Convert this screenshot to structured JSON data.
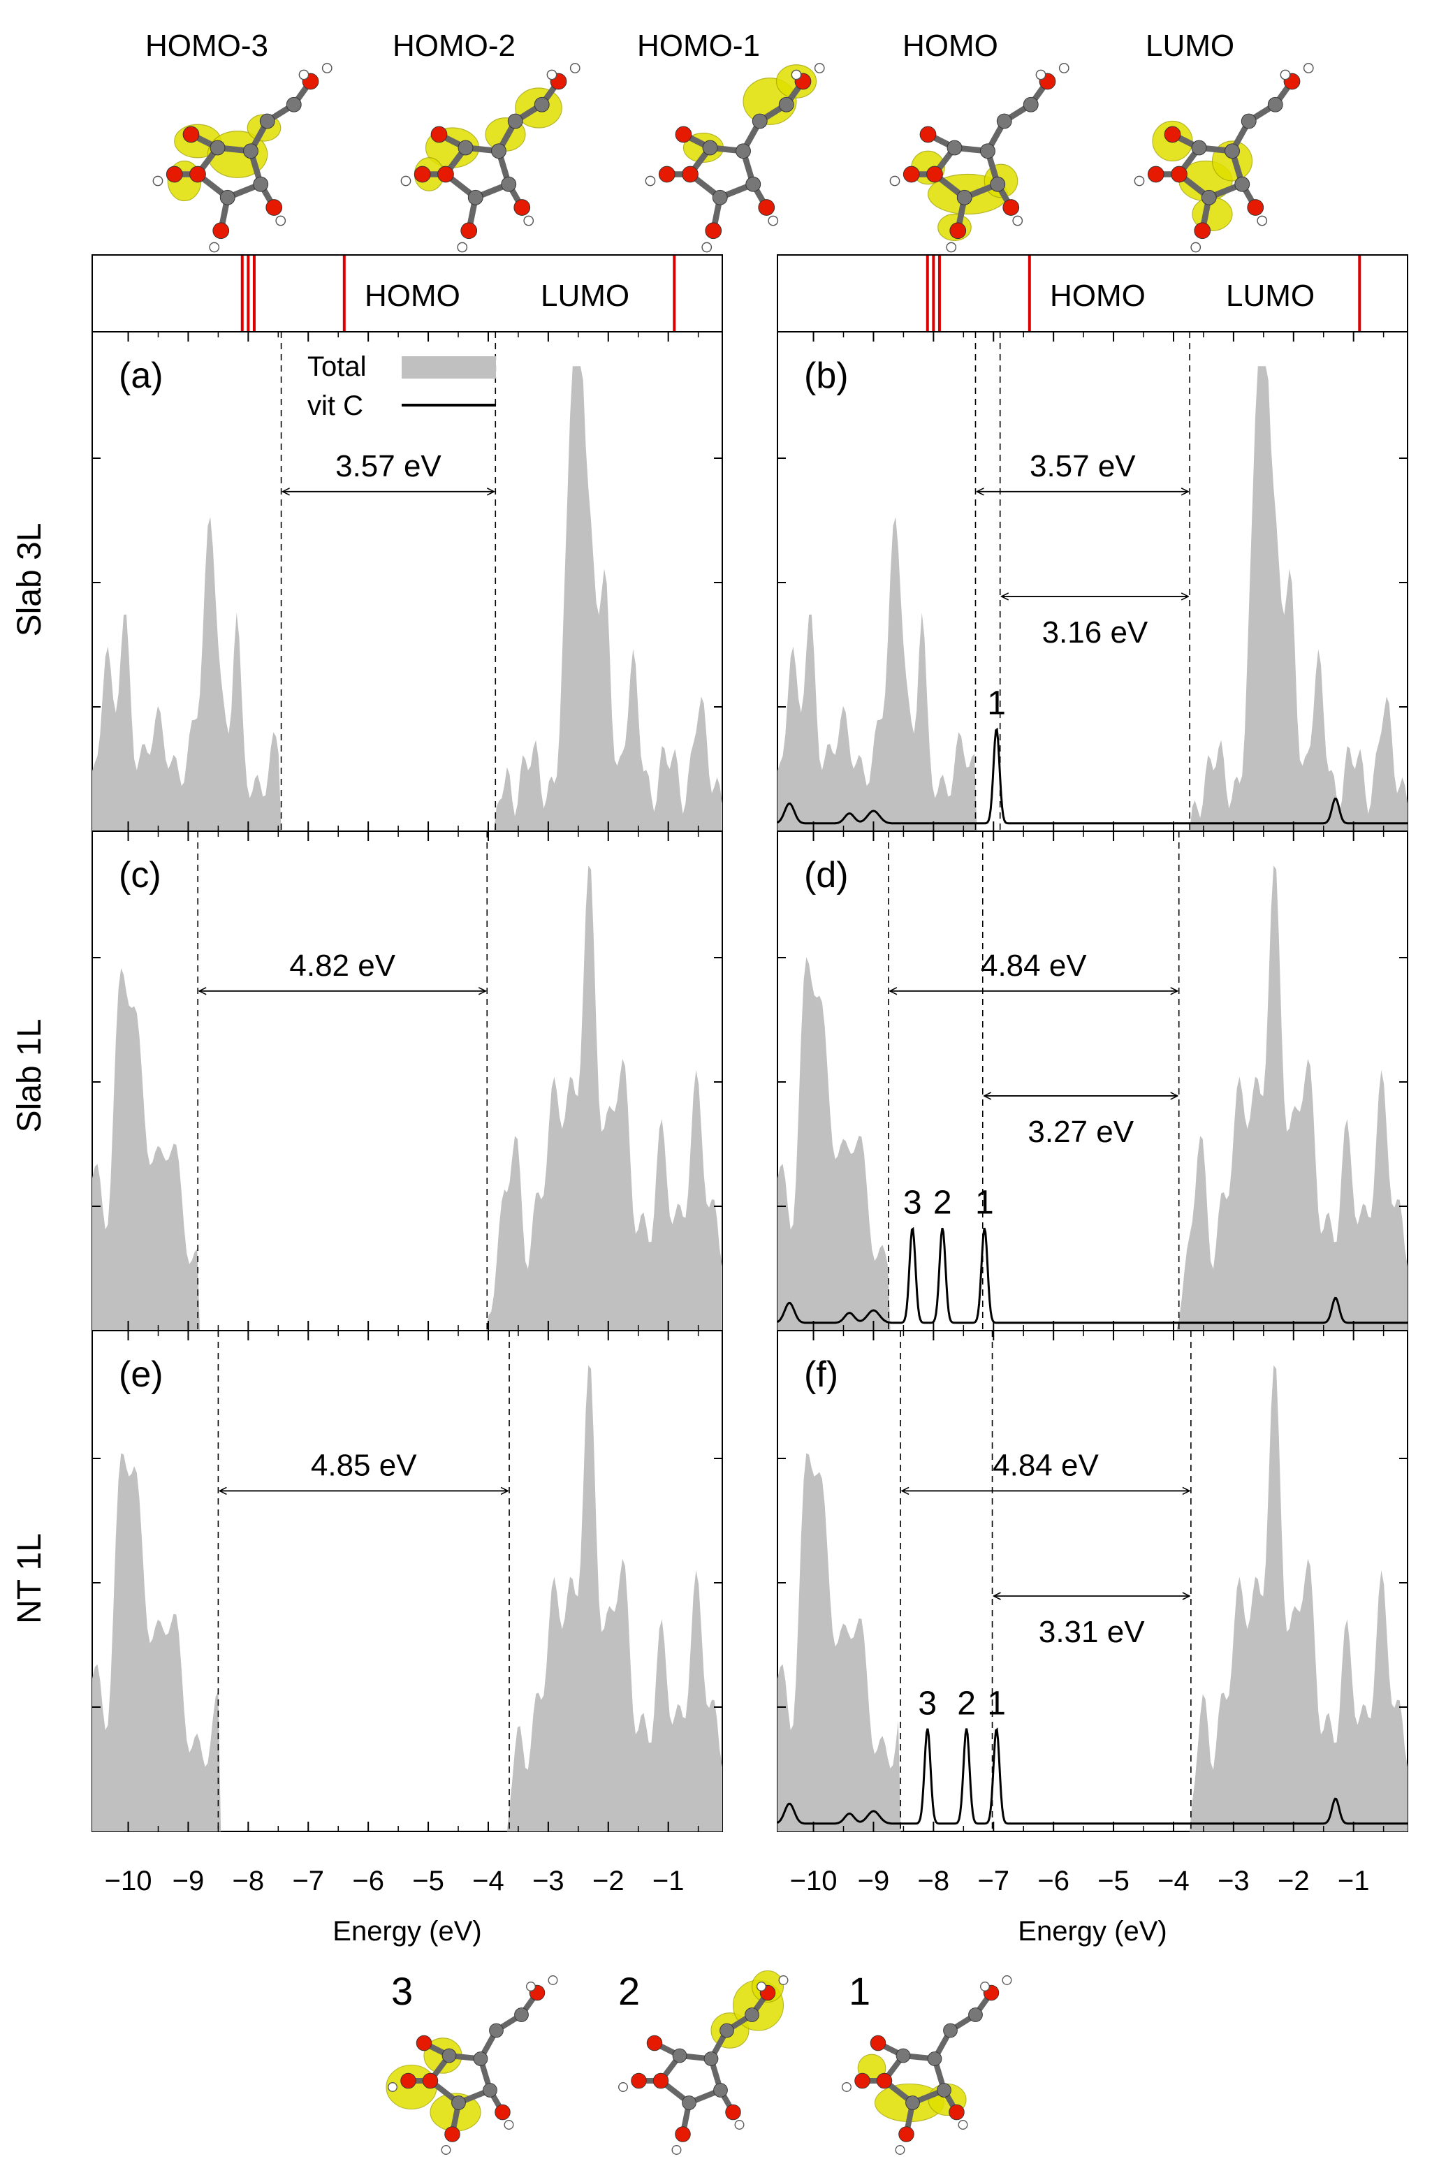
{
  "orbital_labels": [
    "HOMO-3",
    "HOMO-2",
    "HOMO-1",
    "HOMO",
    "LUMO"
  ],
  "bottom_orbital_labels": [
    "3",
    "2",
    "1"
  ],
  "row_labels": [
    "Slab 3L",
    "Slab 1L",
    "NT 1L"
  ],
  "strip": {
    "homo_label": "HOMO",
    "lumo_label": "LUMO"
  },
  "legend": {
    "total": "Total",
    "vitc": "vit C"
  },
  "colors": {
    "total_fill": "#c0c0c0",
    "vitc_line": "#000000",
    "level_line": "#dd0000",
    "isosurface": "#e0e000",
    "oxygen": "#e51a00",
    "carbon": "#777777",
    "hydrogen": "#ffffff"
  },
  "chart_data": [
    {
      "type": "area",
      "panel": "(a)",
      "row": "Slab 3L",
      "xlabel": "Energy (eV)",
      "xlim": [
        -10.6,
        -0.1
      ],
      "xticks": [
        -10,
        -9,
        -8,
        -7,
        -6,
        -5,
        -4,
        -3,
        -2,
        -1
      ],
      "series": [
        {
          "name": "Total"
        }
      ],
      "strip_levels": [
        -8.1,
        -8.0,
        -7.9,
        -6.4,
        -0.9
      ],
      "gaps": [
        {
          "label": "3.57 eV",
          "from": -7.45,
          "to": -3.88
        }
      ],
      "peaks": []
    },
    {
      "type": "area",
      "panel": "(b)",
      "row": "Slab 3L",
      "xlabel": "Energy (eV)",
      "xlim": [
        -10.6,
        -0.1
      ],
      "xticks": [
        -10,
        -9,
        -8,
        -7,
        -6,
        -5,
        -4,
        -3,
        -2,
        -1
      ],
      "series": [
        {
          "name": "Total"
        },
        {
          "name": "vit C"
        }
      ],
      "strip_levels": [
        -8.1,
        -8.0,
        -7.9,
        -6.4,
        -0.9
      ],
      "gaps": [
        {
          "label": "3.57 eV",
          "from": -7.3,
          "to": -3.73
        },
        {
          "label": "3.16 eV",
          "from": -6.89,
          "to": -3.73
        }
      ],
      "peaks": [
        {
          "label": "1",
          "x": -6.95
        }
      ]
    },
    {
      "type": "area",
      "panel": "(c)",
      "row": "Slab 1L",
      "xlabel": "Energy (eV)",
      "xlim": [
        -10.6,
        -0.1
      ],
      "xticks": [
        -10,
        -9,
        -8,
        -7,
        -6,
        -5,
        -4,
        -3,
        -2,
        -1
      ],
      "series": [
        {
          "name": "Total"
        }
      ],
      "gaps": [
        {
          "label": "4.82 eV",
          "from": -8.84,
          "to": -4.02
        }
      ],
      "peaks": []
    },
    {
      "type": "area",
      "panel": "(d)",
      "row": "Slab 1L",
      "xlabel": "Energy (eV)",
      "xlim": [
        -10.6,
        -0.1
      ],
      "xticks": [
        -10,
        -9,
        -8,
        -7,
        -6,
        -5,
        -4,
        -3,
        -2,
        -1
      ],
      "series": [
        {
          "name": "Total"
        },
        {
          "name": "vit C"
        }
      ],
      "gaps": [
        {
          "label": "4.84 eV",
          "from": -8.75,
          "to": -3.91
        },
        {
          "label": "3.27 eV",
          "from": -7.18,
          "to": -3.91
        }
      ],
      "peaks": [
        {
          "label": "3",
          "x": -8.35
        },
        {
          "label": "2",
          "x": -7.85
        },
        {
          "label": "1",
          "x": -7.15
        }
      ]
    },
    {
      "type": "area",
      "panel": "(e)",
      "row": "NT 1L",
      "xlabel": "Energy (eV)",
      "xlim": [
        -10.6,
        -0.1
      ],
      "xticks": [
        -10,
        -9,
        -8,
        -7,
        -6,
        -5,
        -4,
        -3,
        -2,
        -1
      ],
      "series": [
        {
          "name": "Total"
        }
      ],
      "gaps": [
        {
          "label": "4.85 eV",
          "from": -8.5,
          "to": -3.65
        }
      ],
      "peaks": []
    },
    {
      "type": "area",
      "panel": "(f)",
      "row": "NT 1L",
      "xlabel": "Energy (eV)",
      "xlim": [
        -10.6,
        -0.1
      ],
      "xticks": [
        -10,
        -9,
        -8,
        -7,
        -6,
        -5,
        -4,
        -3,
        -2,
        -1
      ],
      "series": [
        {
          "name": "Total"
        },
        {
          "name": "vit C"
        }
      ],
      "gaps": [
        {
          "label": "4.84 eV",
          "from": -8.55,
          "to": -3.71
        },
        {
          "label": "3.31 eV",
          "from": -7.02,
          "to": -3.71
        }
      ],
      "peaks": [
        {
          "label": "3",
          "x": -8.1
        },
        {
          "label": "2",
          "x": -7.45
        },
        {
          "label": "1",
          "x": -6.95
        }
      ]
    }
  ]
}
